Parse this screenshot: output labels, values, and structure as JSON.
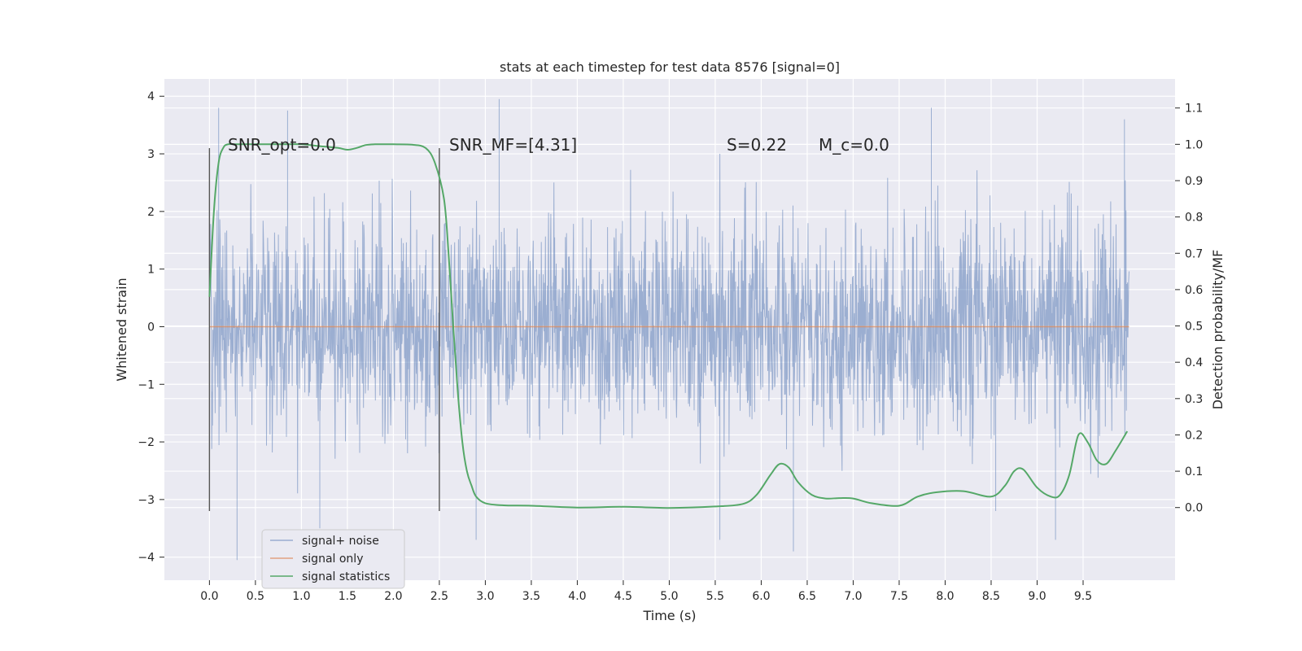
{
  "chart_data": {
    "type": "line",
    "title": "stats at each timestep for test data 8576 [signal=0]",
    "xlabel": "Time (s)",
    "ylabel": "Whitened strain",
    "ylabel_right": "Detection probability/MF",
    "xlim": [
      -0.49,
      10.5
    ],
    "ylim": [
      -4.4,
      4.3
    ],
    "ylim_right": [
      -0.2,
      1.18
    ],
    "x_ticks": [
      0.0,
      0.5,
      1.0,
      1.5,
      2.0,
      2.5,
      3.0,
      3.5,
      4.0,
      4.5,
      5.0,
      5.5,
      6.0,
      6.5,
      7.0,
      7.5,
      8.0,
      8.5,
      9.0,
      9.5
    ],
    "x_tick_labels": [
      "0.0",
      "0.5",
      "1.0",
      "1.5",
      "2.0",
      "2.5",
      "3.0",
      "3.5",
      "4.0",
      "4.5",
      "5.0",
      "5.5",
      "6.0",
      "6.5",
      "7.0",
      "7.5",
      "8.0",
      "8.5",
      "9.0",
      "9.5"
    ],
    "y_ticks": [
      -4,
      -3,
      -2,
      -1,
      0,
      1,
      2,
      3,
      4
    ],
    "y_tick_labels": [
      "−4",
      "−3",
      "−2",
      "−1",
      "0",
      "1",
      "2",
      "3",
      "4"
    ],
    "y2_ticks": [
      0.0,
      0.1,
      0.2,
      0.3,
      0.4,
      0.5,
      0.6,
      0.7,
      0.8,
      0.9,
      1.0,
      1.1
    ],
    "y2_tick_labels": [
      "0.0",
      "0.1",
      "0.2",
      "0.3",
      "0.4",
      "0.5",
      "0.6",
      "0.7",
      "0.8",
      "0.9",
      "1.0",
      "1.1"
    ],
    "grid": true,
    "legend_position": "lower-left",
    "series": [
      {
        "name": "signal+ noise",
        "axis": "left",
        "color": "#4c72b0",
        "note": "dense noise trace, values approx. within [-4.1, 3.95]",
        "x_range": [
          0.0,
          10.0
        ],
        "envelope": {
          "typical_max": 1.8,
          "typical_min": -1.8
        },
        "spikes": [
          {
            "x": 0.1,
            "y": 3.8
          },
          {
            "x": 0.85,
            "y": 3.75
          },
          {
            "x": 3.15,
            "y": 3.95
          },
          {
            "x": 7.85,
            "y": 3.8
          },
          {
            "x": 9.95,
            "y": 3.6
          },
          {
            "x": 0.3,
            "y": -4.05
          },
          {
            "x": 2.9,
            "y": -3.7
          },
          {
            "x": 6.35,
            "y": -3.9
          },
          {
            "x": 9.2,
            "y": -3.7
          },
          {
            "x": 5.55,
            "y": -3.7
          },
          {
            "x": 1.2,
            "y": -3.5
          },
          {
            "x": 8.55,
            "y": -3.2
          }
        ]
      },
      {
        "name": "signal only",
        "axis": "left",
        "color": "#dd8452",
        "x": [
          0.0,
          10.0
        ],
        "y": [
          0.0,
          0.0
        ]
      },
      {
        "name": "signal statistics",
        "axis": "right",
        "color": "#55a868",
        "x": [
          0.0,
          0.05,
          0.1,
          0.15,
          0.2,
          0.3,
          0.5,
          0.8,
          1.0,
          1.2,
          1.4,
          1.5,
          1.6,
          1.7,
          1.8,
          2.0,
          2.2,
          2.35,
          2.45,
          2.55,
          2.6,
          2.65,
          2.7,
          2.75,
          2.8,
          2.85,
          2.9,
          3.0,
          3.2,
          3.5,
          4.0,
          4.5,
          5.0,
          5.5,
          5.8,
          5.95,
          6.1,
          6.2,
          6.3,
          6.4,
          6.55,
          6.7,
          6.85,
          7.0,
          7.2,
          7.5,
          7.7,
          7.9,
          8.2,
          8.5,
          8.65,
          8.75,
          8.85,
          9.0,
          9.15,
          9.25,
          9.35,
          9.45,
          9.55,
          9.65,
          9.75,
          9.85,
          9.98
        ],
        "y": [
          0.58,
          0.82,
          0.95,
          0.99,
          1.0,
          1.0,
          1.0,
          1.0,
          1.0,
          0.995,
          0.99,
          0.985,
          0.99,
          0.998,
          1.0,
          1.0,
          0.999,
          0.99,
          0.95,
          0.85,
          0.7,
          0.5,
          0.32,
          0.18,
          0.1,
          0.06,
          0.03,
          0.012,
          0.006,
          0.005,
          0.0,
          0.002,
          -0.001,
          0.003,
          0.01,
          0.035,
          0.09,
          0.12,
          0.11,
          0.07,
          0.035,
          0.025,
          0.026,
          0.025,
          0.012,
          0.005,
          0.03,
          0.042,
          0.045,
          0.03,
          0.06,
          0.1,
          0.105,
          0.055,
          0.03,
          0.035,
          0.09,
          0.2,
          0.18,
          0.13,
          0.12,
          0.155,
          0.21
        ]
      }
    ],
    "vertical_lines": [
      {
        "x": 0.0,
        "ymin": -3.2,
        "ymax": 3.1,
        "color": "#555555"
      },
      {
        "x": 2.5,
        "ymin": -3.2,
        "ymax": 3.1,
        "color": "#555555"
      }
    ],
    "annotations": [
      {
        "text": "SNR_opt=0.0",
        "x": 0.2,
        "y": 3.1
      },
      {
        "text": "SNR_MF=[4.31]",
        "x": 2.6,
        "y": 3.1
      },
      {
        "text": "S=0.22",
        "x": 5.62,
        "y": 3.1
      },
      {
        "text": "M_c=0.0",
        "x": 6.62,
        "y": 3.1
      }
    ],
    "legend": [
      "signal+ noise",
      "signal only",
      "signal statistics"
    ]
  }
}
